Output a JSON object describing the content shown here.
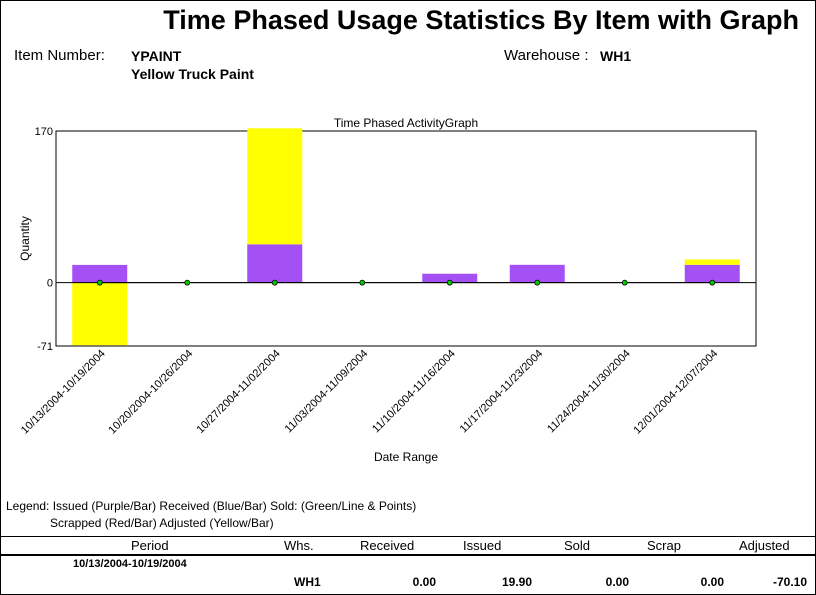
{
  "report": {
    "title": "Time Phased Usage Statistics By Item with Graph",
    "item_number_label": "Item Number:",
    "item_number": "YPAINT",
    "item_description": "Yellow Truck Paint",
    "warehouse_label": "Warehouse :",
    "warehouse": "WH1"
  },
  "legend": {
    "line1": "Legend: Issued (Purple/Bar) Received (Blue/Bar) Sold: (Green/Line & Points)",
    "line2": "Scrapped (Red/Bar) Adjusted (Yellow/Bar)"
  },
  "colors": {
    "issued": "#a350f5",
    "adjusted": "#ffff00",
    "sold": "#00cc00",
    "received": "#0000ff",
    "scrapped": "#ff0000"
  },
  "chart_data": {
    "type": "bar",
    "title": "Time Phased ActivityGraph",
    "xlabel": "Date Range",
    "ylabel": "Quantity",
    "ylim": [
      -71,
      170
    ],
    "yticks": [
      "170",
      "0",
      "-71"
    ],
    "categories": [
      "10/13/2004-10/19/2004",
      "10/20/2004-10/26/2004",
      "10/27/2004-11/02/2004",
      "11/03/2004-11/09/2004",
      "11/10/2004-11/16/2004",
      "11/17/2004-11/23/2004",
      "11/24/2004-11/30/2004",
      "12/01/2004-12/07/2004"
    ],
    "series": [
      {
        "name": "Issued",
        "type": "bar",
        "values": [
          19.9,
          0,
          43,
          0,
          10,
          20,
          0,
          20
        ]
      },
      {
        "name": "Adjusted",
        "type": "bar",
        "values": [
          -70.1,
          0,
          130,
          0,
          0,
          0,
          0,
          6
        ]
      },
      {
        "name": "Sold",
        "type": "line",
        "values": [
          0,
          0,
          0,
          0,
          0,
          0,
          0,
          0
        ]
      }
    ]
  },
  "table": {
    "headers": [
      "Period",
      "Whs.",
      "Received",
      "Issued",
      "Sold",
      "Scrap",
      "Adjusted"
    ],
    "rows": [
      {
        "period": "10/13/2004-10/19/2004",
        "whs": "WH1",
        "received": "0.00",
        "issued": "19.90",
        "sold": "0.00",
        "scrap": "0.00",
        "adjusted": "-70.10"
      }
    ]
  }
}
